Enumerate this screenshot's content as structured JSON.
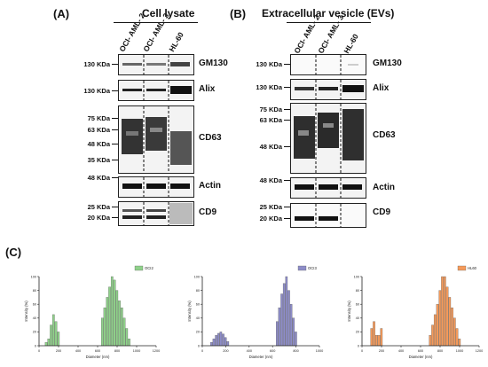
{
  "figure": {
    "panel_a": {
      "label": "(A)",
      "title": "Cell lysate",
      "lanes": [
        "OCI- AML- 2",
        "OCI- AML- 3",
        "HL-60"
      ],
      "blots": [
        {
          "protein": "GM130",
          "markers": [
            "130 KDa"
          ]
        },
        {
          "protein": "Alix",
          "markers": [
            "130 KDa"
          ]
        },
        {
          "protein": "CD63",
          "markers": [
            "75 KDa",
            "63 KDa",
            "48 KDa",
            "35 KDa"
          ]
        },
        {
          "protein": "Actin",
          "markers": [
            "48 KDa"
          ]
        },
        {
          "protein": "CD9",
          "markers": [
            "25 KDa",
            "20 KDa"
          ]
        }
      ]
    },
    "panel_b": {
      "label": "(B)",
      "title": "Extracellular vesicle (EVs)",
      "lanes": [
        "OCI- AML- 2",
        "OCI- AML- 3",
        "HL-60"
      ],
      "blots": [
        {
          "protein": "GM130",
          "markers": [
            "130 KDa"
          ]
        },
        {
          "protein": "Alix",
          "markers": [
            "130 KDa"
          ]
        },
        {
          "protein": "CD63",
          "markers": [
            "75 KDa",
            "63 KDa",
            "48 KDa"
          ]
        },
        {
          "protein": "Actin",
          "markers": [
            "48 KDa"
          ]
        },
        {
          "protein": "CD9",
          "markers": [
            "25 KDa",
            "20 KDa"
          ]
        }
      ]
    },
    "panel_c": {
      "label": "(C)"
    }
  },
  "chart_data": [
    {
      "type": "bar",
      "legend": "OCI2",
      "legend_position": "top-right",
      "color": "#8fd18a",
      "xlabel": "Diameter (nm)",
      "ylabel": "Intensity (%)",
      "xlim": [
        0,
        1200
      ],
      "ylim": [
        0,
        100
      ],
      "xticks": [
        0,
        200,
        400,
        600,
        800,
        1000,
        1200
      ],
      "yticks": [
        0,
        20,
        40,
        60,
        80,
        100
      ],
      "bin_width": 25,
      "x": [
        75,
        100,
        125,
        150,
        175,
        200,
        650,
        675,
        700,
        725,
        750,
        775,
        800,
        825,
        850,
        875,
        900,
        925
      ],
      "values": [
        5,
        10,
        30,
        45,
        35,
        20,
        40,
        55,
        70,
        85,
        100,
        95,
        80,
        65,
        55,
        40,
        25,
        10
      ]
    },
    {
      "type": "bar",
      "legend": "OCI3",
      "legend_position": "top-right",
      "color": "#8d8cc8",
      "xlabel": "Diameter (nm)",
      "ylabel": "Intensity (%)",
      "xlim": [
        0,
        1000
      ],
      "ylim": [
        0,
        100
      ],
      "xticks": [
        0,
        200,
        400,
        600,
        800,
        1000
      ],
      "yticks": [
        0,
        20,
        40,
        60,
        80,
        100
      ],
      "bin_width": 20,
      "x": [
        80,
        100,
        120,
        140,
        160,
        180,
        200,
        220,
        640,
        660,
        680,
        700,
        720,
        740,
        760,
        780,
        800
      ],
      "values": [
        5,
        10,
        15,
        18,
        20,
        17,
        12,
        6,
        35,
        55,
        75,
        90,
        100,
        80,
        60,
        40,
        20
      ]
    },
    {
      "type": "bar",
      "legend": "HL60",
      "legend_position": "top-right",
      "color": "#f59a5a",
      "xlabel": "Diameter (nm)",
      "ylabel": "Intensity (%)",
      "xlim": [
        0,
        1200
      ],
      "ylim": [
        0,
        100
      ],
      "xticks": [
        0,
        200,
        400,
        600,
        800,
        1000,
        1200
      ],
      "yticks": [
        0,
        20,
        40,
        60,
        80,
        100
      ],
      "bin_width": 25,
      "x": [
        100,
        125,
        150,
        175,
        200,
        700,
        725,
        750,
        775,
        800,
        825,
        850,
        875,
        900,
        925,
        950,
        975,
        1000
      ],
      "values": [
        25,
        35,
        15,
        15,
        25,
        15,
        30,
        45,
        60,
        80,
        100,
        100,
        85,
        70,
        55,
        40,
        25,
        10
      ]
    }
  ]
}
